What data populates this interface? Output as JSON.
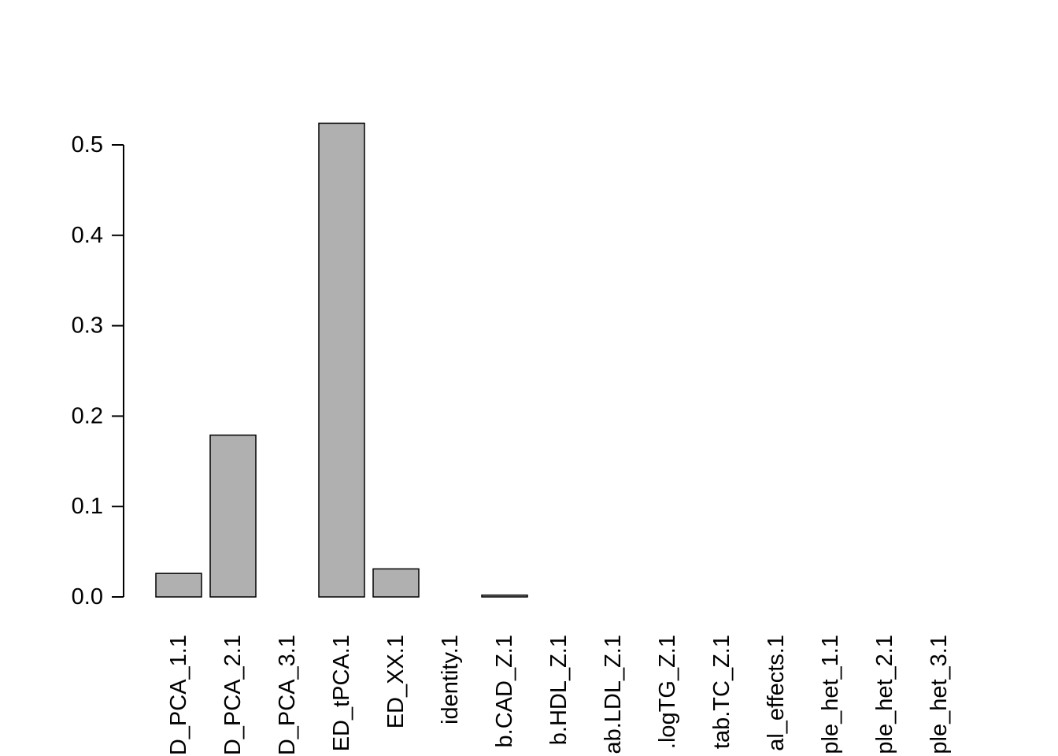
{
  "chart_data": {
    "type": "bar",
    "title": "",
    "xlabel": "",
    "ylabel": "",
    "ylim": [
      0,
      0.5
    ],
    "yticks": [
      "0.0",
      "0.1",
      "0.2",
      "0.3",
      "0.4",
      "0.5"
    ],
    "grid": false,
    "legend": "none",
    "categories": [
      "D_PCA_1.1",
      "D_PCA_2.1",
      "D_PCA_3.1",
      "ED_tPCA.1",
      "ED_XX.1",
      "identity.1",
      "b.CAD_Z.1",
      "b.HDL_Z.1",
      "ab.LDL_Z.1",
      ".logTG_Z.1",
      "tab.TC_Z.1",
      "al_effects.1",
      "ple_het_1.1",
      "ple_het_2.1",
      "ple_het_3.1"
    ],
    "values": [
      0.026,
      0.179,
      0.0,
      0.524,
      0.031,
      0.0,
      0.002,
      0.0,
      0.0,
      0.0,
      0.0,
      0.0,
      0.0,
      0.0,
      0.0
    ],
    "colors": {
      "bar_fill": "#b0b0b0",
      "bar_stroke": "#000000",
      "axis": "#000000"
    }
  }
}
